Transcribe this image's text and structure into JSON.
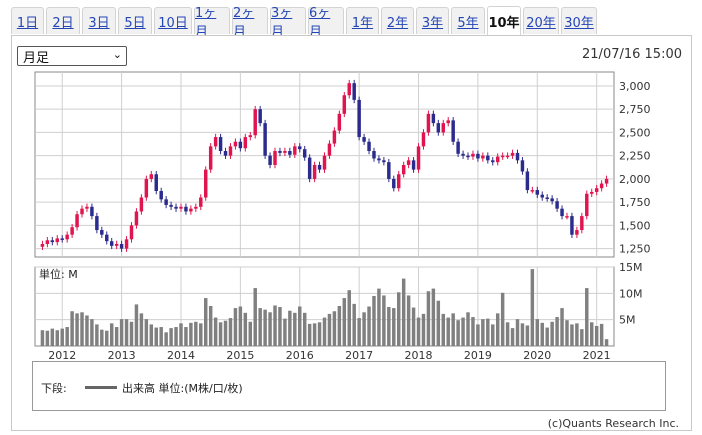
{
  "tabs": [
    {
      "label": "1日"
    },
    {
      "label": "2日"
    },
    {
      "label": "3日"
    },
    {
      "label": "5日"
    },
    {
      "label": "10日"
    },
    {
      "label": "1ヶ月"
    },
    {
      "label": "2ヶ月"
    },
    {
      "label": "3ヶ月"
    },
    {
      "label": "6ヶ月"
    },
    {
      "label": "1年"
    },
    {
      "label": "2年"
    },
    {
      "label": "3年"
    },
    {
      "label": "5年"
    },
    {
      "label": "10年",
      "active": true
    },
    {
      "label": "20年"
    },
    {
      "label": "30年"
    }
  ],
  "period_select": {
    "value": "月足"
  },
  "timestamp": "21/07/16 15:00",
  "legend": {
    "prefix": "下段:",
    "volume_label": "出来高 単位:(M株/口/枚)"
  },
  "copyright": "(c)Quants Research Inc.",
  "colors": {
    "up": "#e0154f",
    "down": "#2b2b8e",
    "volume": "#808080",
    "grid": "#cfcfcf"
  },
  "chart_data": [
    {
      "type": "candlestick",
      "title": "",
      "x_unit": "month",
      "x_start": "2011-09",
      "x_ticks": [
        "2012",
        "2013",
        "2014",
        "2015",
        "2016",
        "2017",
        "2018",
        "2019",
        "2020",
        "2021"
      ],
      "y_ticks": [
        "3,000",
        "2,750",
        "2,500",
        "2,250",
        "2,000",
        "1,750",
        "1,500",
        "1,250"
      ],
      "ylim": [
        1160,
        3150
      ],
      "grid": true,
      "close": [
        1300,
        1340,
        1320,
        1360,
        1350,
        1400,
        1480,
        1620,
        1680,
        1700,
        1600,
        1450,
        1400,
        1330,
        1280,
        1300,
        1250,
        1350,
        1500,
        1650,
        1800,
        2000,
        2050,
        1870,
        1780,
        1720,
        1700,
        1680,
        1700,
        1650,
        1680,
        1700,
        1800,
        2100,
        2350,
        2450,
        2300,
        2250,
        2350,
        2400,
        2330,
        2450,
        2470,
        2750,
        2600,
        2250,
        2150,
        2300,
        2280,
        2300,
        2260,
        2350,
        2320,
        2230,
        2000,
        2150,
        2100,
        2250,
        2380,
        2520,
        2700,
        2900,
        3030,
        2850,
        2450,
        2400,
        2300,
        2220,
        2200,
        2180,
        2000,
        1900,
        2050,
        2150,
        2200,
        2100,
        2350,
        2500,
        2700,
        2600,
        2500,
        2600,
        2630,
        2400,
        2270,
        2250,
        2240,
        2270,
        2220,
        2250,
        2200,
        2180,
        2240,
        2250,
        2250,
        2280,
        2200,
        2080,
        1880,
        1880,
        1830,
        1800,
        1790,
        1760,
        1680,
        1600,
        1600,
        1400,
        1450,
        1600,
        1840,
        1860,
        1900,
        1950,
        2000
      ],
      "volume_label": "単位: M",
      "volume_ticks": [
        "15M",
        "10M",
        "5M"
      ],
      "volume_ylim": [
        0,
        15
      ],
      "volume": [
        3,
        2.9,
        3.3,
        3,
        3.3,
        3.6,
        6.6,
        6.2,
        6.4,
        5.8,
        5.1,
        4.1,
        3.1,
        2.9,
        4.3,
        3.6,
        5.1,
        5.1,
        4.6,
        7.9,
        6.2,
        5.1,
        4.1,
        3.5,
        3.6,
        2.6,
        3.4,
        3.6,
        4.3,
        3.6,
        4.4,
        4.6,
        4.3,
        9.1,
        7.6,
        5.4,
        4.5,
        4.8,
        5.3,
        7.2,
        7.5,
        6.3,
        4.6,
        11,
        7.2,
        6.9,
        6.4,
        7.7,
        7.4,
        5.2,
        6.7,
        6.3,
        7.5,
        6.3,
        4.2,
        4.3,
        4.5,
        5.4,
        6.1,
        6.6,
        7.6,
        9.1,
        10.6,
        8,
        5.3,
        6.4,
        7.5,
        9.5,
        10.9,
        9.6,
        7.4,
        7.2,
        10.2,
        12.8,
        9.6,
        7.3,
        5.4,
        6.1,
        10.4,
        10.9,
        8.6,
        6.1,
        5.4,
        6.2,
        4.9,
        5.4,
        6.4,
        5.5,
        4.1,
        5.1,
        5.2,
        4.1,
        6.2,
        10.1,
        4.5,
        3.4,
        5.1,
        4.3,
        3.9,
        14.6,
        5.1,
        4.4,
        3.5,
        4.6,
        5.5,
        7.2,
        4.9,
        4.1,
        4.3,
        3.2,
        11,
        4.5,
        3.8,
        4.2,
        1.3
      ]
    }
  ]
}
